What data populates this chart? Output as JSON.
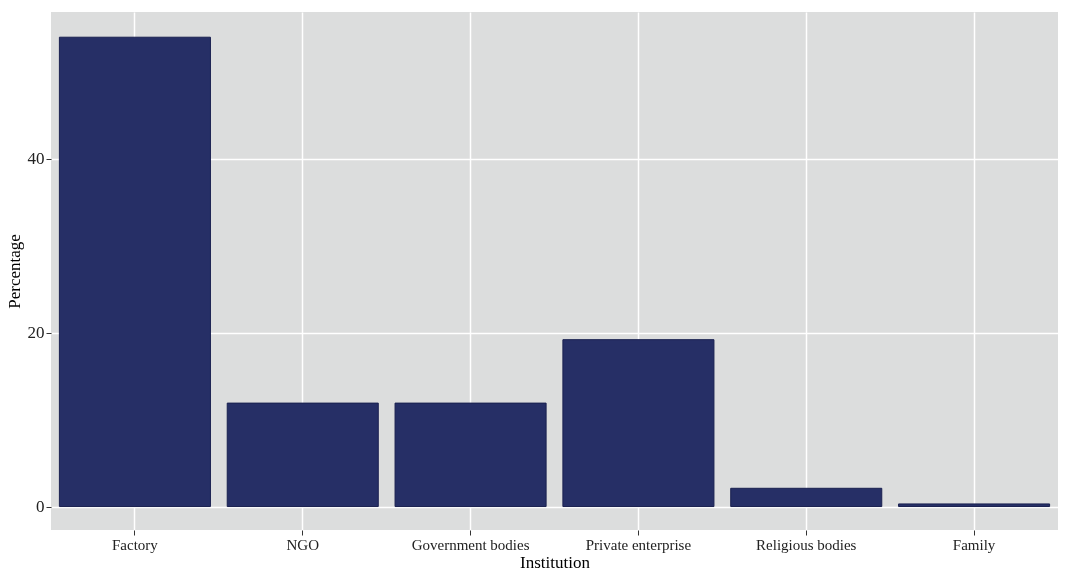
{
  "chart_data": {
    "type": "bar",
    "xlabel": "Institution",
    "ylabel": "Percentage",
    "categories": [
      "Factory",
      "NGO",
      "Government bodies",
      "Private enterprise",
      "Religious bodies",
      "Family"
    ],
    "values": [
      54.0,
      11.9,
      11.9,
      19.2,
      2.1,
      0.3
    ],
    "color": "#262f66",
    "ylim": [
      -2.7,
      56.9
    ],
    "yticks": [
      0,
      20,
      40
    ],
    "grid": true
  }
}
